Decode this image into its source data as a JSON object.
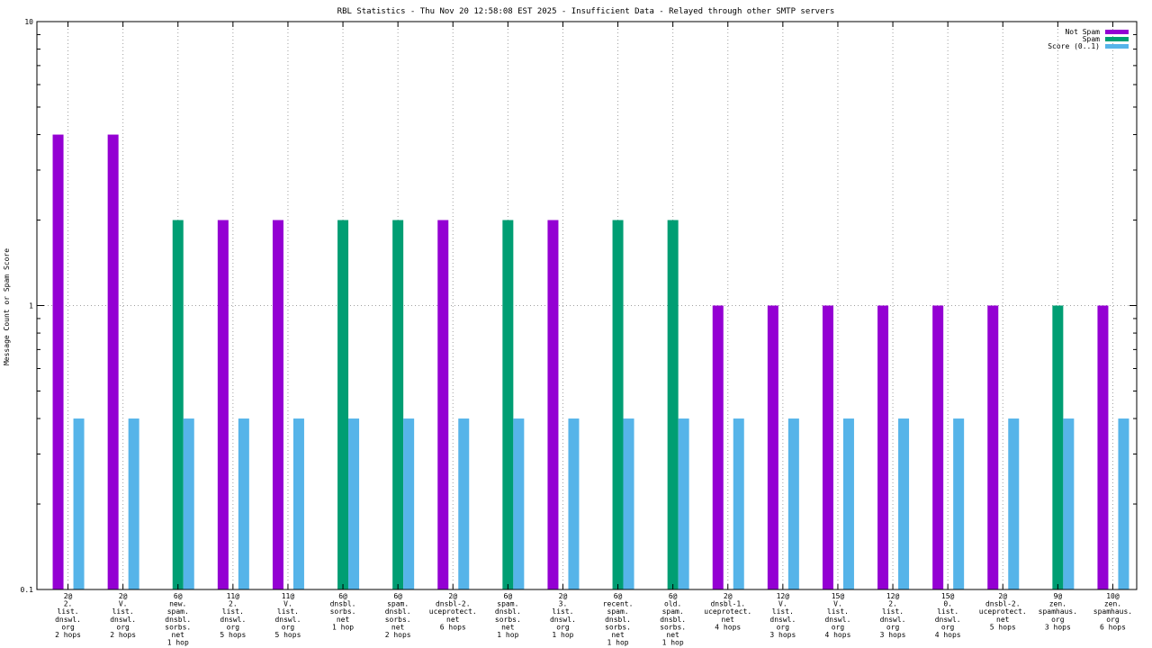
{
  "chart_data": {
    "type": "bar",
    "title": "RBL Statistics - Thu Nov 20 12:58:08 EST 2025 - Insufficient Data - Relayed through other SMTP servers",
    "ylabel": "Message Count or Spam Score",
    "xlabel": "",
    "yscale": "log",
    "ylim": [
      0.1,
      10
    ],
    "yticks": [
      {
        "value": 0.1,
        "label": "0.1"
      },
      {
        "value": 1,
        "label": "1"
      },
      {
        "value": 10,
        "label": "10"
      }
    ],
    "grid": true,
    "legend_position": "top-right",
    "categories": [
      [
        "2@",
        "2.",
        "list.",
        "dnswl.",
        "org",
        "2 hops"
      ],
      [
        "2@",
        "V.",
        "list.",
        "dnswl.",
        "org",
        "2 hops"
      ],
      [
        "6@",
        "new.",
        "spam.",
        "dnsbl.",
        "sorbs.",
        "net",
        "1 hop"
      ],
      [
        "11@",
        "2.",
        "list.",
        "dnswl.",
        "org",
        "5 hops"
      ],
      [
        "11@",
        "V.",
        "list.",
        "dnswl.",
        "org",
        "5 hops"
      ],
      [
        "6@",
        "dnsbl.",
        "sorbs.",
        "net",
        "1 hop"
      ],
      [
        "6@",
        "spam.",
        "dnsbl.",
        "sorbs.",
        "net",
        "2 hops"
      ],
      [
        "2@",
        "dnsbl-2.",
        "uceprotect.",
        "net",
        "6 hops"
      ],
      [
        "6@",
        "spam.",
        "dnsbl.",
        "sorbs.",
        "net",
        "1 hop"
      ],
      [
        "2@",
        "3.",
        "list.",
        "dnswl.",
        "org",
        "1 hop"
      ],
      [
        "6@",
        "recent.",
        "spam.",
        "dnsbl.",
        "sorbs.",
        "net",
        "1 hop"
      ],
      [
        "6@",
        "old.",
        "spam.",
        "dnsbl.",
        "sorbs.",
        "net",
        "1 hop"
      ],
      [
        "2@",
        "dnsbl-1.",
        "uceprotect.",
        "net",
        "4 hops"
      ],
      [
        "12@",
        "V.",
        "list.",
        "dnswl.",
        "org",
        "3 hops"
      ],
      [
        "15@",
        "V.",
        "list.",
        "dnswl.",
        "org",
        "4 hops"
      ],
      [
        "12@",
        "2.",
        "list.",
        "dnswl.",
        "org",
        "3 hops"
      ],
      [
        "15@",
        "0.",
        "list.",
        "dnswl.",
        "org",
        "4 hops"
      ],
      [
        "2@",
        "dnsbl-2.",
        "uceprotect.",
        "net",
        "5 hops"
      ],
      [
        "9@",
        "zen.",
        "spamhaus.",
        "org",
        "3 hops"
      ],
      [
        "10@",
        "zen.",
        "spamhaus.",
        "org",
        "6 hops"
      ]
    ],
    "series": [
      {
        "name": "Not Spam",
        "color": "#9400d3",
        "values": [
          4,
          4,
          null,
          2,
          2,
          null,
          null,
          2,
          null,
          2,
          null,
          null,
          1,
          1,
          1,
          1,
          1,
          1,
          null,
          1
        ]
      },
      {
        "name": "Spam",
        "color": "#009e73",
        "values": [
          null,
          null,
          2,
          null,
          null,
          2,
          2,
          null,
          2,
          null,
          2,
          2,
          null,
          null,
          null,
          null,
          null,
          null,
          1,
          null
        ]
      },
      {
        "name": "Score (0..1)",
        "color": "#56b4e9",
        "values": [
          0.4,
          0.4,
          0.4,
          0.4,
          0.4,
          0.4,
          0.4,
          0.4,
          0.4,
          0.4,
          0.4,
          0.4,
          0.4,
          0.4,
          0.4,
          0.4,
          0.4,
          0.4,
          0.4,
          0.4
        ]
      }
    ]
  }
}
